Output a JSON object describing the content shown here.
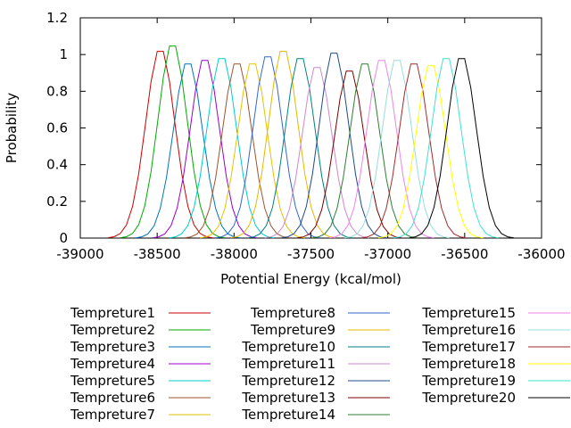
{
  "chart_data": {
    "type": "line",
    "xlabel": "Potential Energy (kcal/mol)",
    "ylabel": "Probability",
    "xlim": [
      -39000,
      -36000
    ],
    "ylim": [
      0,
      1.2
    ],
    "x_ticks": [
      -39000,
      -38500,
      -38000,
      -37500,
      -37000,
      -36500,
      -36000
    ],
    "y_ticks": [
      "0",
      "0.2",
      "0.4",
      "0.6",
      "0.8",
      "1",
      "1.2"
    ],
    "grid": false,
    "legend_placement": "below-plot, 3 columns",
    "series": [
      {
        "name": "Tempreture1",
        "color": "#cc0000",
        "center": -38480,
        "peak": 1.04
      },
      {
        "name": "Tempreture2",
        "color": "#00aa00",
        "center": -38400,
        "peak": 1.07
      },
      {
        "name": "Tempreture3",
        "color": "#0072bd",
        "center": -38300,
        "peak": 0.97
      },
      {
        "name": "Tempreture4",
        "color": "#9900cc",
        "center": -38190,
        "peak": 0.99
      },
      {
        "name": "Tempreture5",
        "color": "#00cccc",
        "center": -38080,
        "peak": 1.0
      },
      {
        "name": "Tempreture6",
        "color": "#a0522d",
        "center": -37980,
        "peak": 0.97
      },
      {
        "name": "Tempreture7",
        "color": "#e6c200",
        "center": -37880,
        "peak": 0.97
      },
      {
        "name": "Tempreture8",
        "color": "#3366cc",
        "center": -37780,
        "peak": 1.01
      },
      {
        "name": "Tempreture9",
        "color": "#e6b800",
        "center": -37680,
        "peak": 1.04
      },
      {
        "name": "Tempreture10",
        "color": "#008080",
        "center": -37570,
        "peak": 1.0
      },
      {
        "name": "Tempreture11",
        "color": "#cc88cc",
        "center": -37460,
        "peak": 0.95
      },
      {
        "name": "Tempreture12",
        "color": "#204a87",
        "center": -37350,
        "peak": 1.03
      },
      {
        "name": "Tempreture13",
        "color": "#7a0000",
        "center": -37250,
        "peak": 0.93
      },
      {
        "name": "Tempreture14",
        "color": "#2e7d32",
        "center": -37150,
        "peak": 0.97
      },
      {
        "name": "Tempreture15",
        "color": "#ee82ee",
        "center": -37040,
        "peak": 0.99
      },
      {
        "name": "Tempreture16",
        "color": "#99dddd",
        "center": -36940,
        "peak": 0.99
      },
      {
        "name": "Tempreture17",
        "color": "#a52a2a",
        "center": -36830,
        "peak": 0.97
      },
      {
        "name": "Tempreture18",
        "color": "#ffff00",
        "center": -36720,
        "peak": 0.96
      },
      {
        "name": "Tempreture19",
        "color": "#40e0d0",
        "center": -36620,
        "peak": 1.0
      },
      {
        "name": "Tempreture20",
        "color": "#000000",
        "center": -36520,
        "peak": 1.0
      }
    ]
  }
}
